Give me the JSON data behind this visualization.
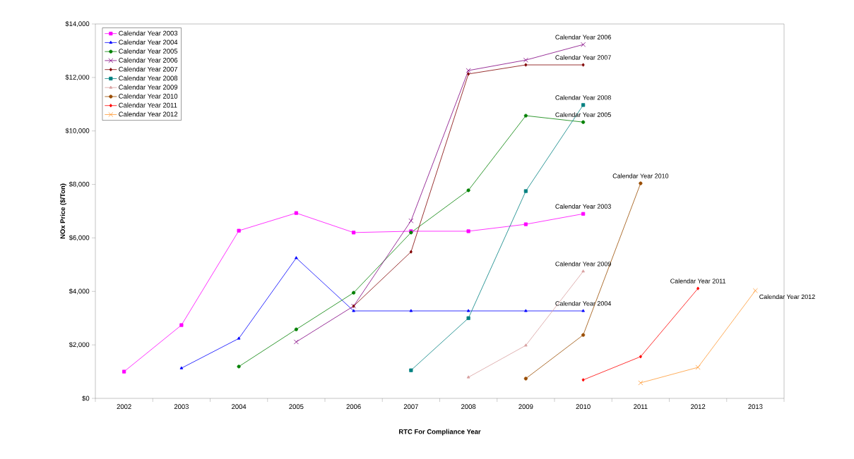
{
  "chart_data": {
    "type": "line",
    "xlabel": "RTC For Compliance Year",
    "ylabel": "NOx Price ($/Ton)",
    "categories": [
      "2002",
      "2003",
      "2004",
      "2005",
      "2006",
      "2007",
      "2008",
      "2009",
      "2010",
      "2011",
      "2012",
      "2013"
    ],
    "ylim": [
      0,
      14000
    ],
    "yticks": [
      {
        "value": 0,
        "label": "$0"
      },
      {
        "value": 2000,
        "label": "$2,000"
      },
      {
        "value": 4000,
        "label": "$4,000"
      },
      {
        "value": 6000,
        "label": "$6,000"
      },
      {
        "value": 8000,
        "label": "$8,000"
      },
      {
        "value": 10000,
        "label": "$10,000"
      },
      {
        "value": 12000,
        "label": "$12,000"
      },
      {
        "value": 14000,
        "label": "$14,000"
      }
    ],
    "legend": "top left",
    "grid": false,
    "line_style": "solid",
    "series": [
      {
        "name": "Calendar Year 2003",
        "color": "#ff00ff",
        "marker": "square",
        "values": [
          1000,
          2740,
          6270,
          6930,
          6200,
          6250,
          6250,
          6510,
          6900,
          null,
          null,
          null
        ]
      },
      {
        "name": "Calendar Year 2004",
        "color": "#0000ff",
        "marker": "triangle",
        "values": [
          null,
          1130,
          2240,
          5250,
          3270,
          3270,
          3270,
          3270,
          3270,
          null,
          null,
          null
        ]
      },
      {
        "name": "Calendar Year 2005",
        "color": "#008000",
        "marker": "circle",
        "values": [
          null,
          null,
          1190,
          2580,
          3950,
          6200,
          7780,
          10570,
          10330,
          null,
          null,
          null
        ]
      },
      {
        "name": "Calendar Year 2006",
        "color": "#800080",
        "marker": "cross",
        "values": [
          null,
          null,
          null,
          2110,
          3450,
          6640,
          12260,
          12650,
          13230,
          null,
          null,
          null
        ]
      },
      {
        "name": "Calendar Year 2007",
        "color": "#800000",
        "marker": "diamond",
        "values": [
          null,
          null,
          null,
          null,
          3450,
          5480,
          12130,
          12470,
          12470,
          null,
          null,
          null
        ]
      },
      {
        "name": "Calendar Year 2008",
        "color": "#008080",
        "marker": "square",
        "values": [
          null,
          null,
          null,
          null,
          null,
          1050,
          3000,
          7750,
          10970,
          null,
          null,
          null
        ]
      },
      {
        "name": "Calendar Year 2009",
        "color": "#d8a0a0",
        "marker": "triangle",
        "values": [
          null,
          null,
          null,
          null,
          null,
          null,
          790,
          1980,
          4750,
          null,
          null,
          null
        ]
      },
      {
        "name": "Calendar Year 2010",
        "color": "#994c00",
        "marker": "circle",
        "values": [
          null,
          null,
          null,
          null,
          null,
          null,
          null,
          740,
          2370,
          8040,
          null,
          null
        ]
      },
      {
        "name": "Calendar Year 2011",
        "color": "#ff0000",
        "marker": "diamond",
        "values": [
          null,
          null,
          null,
          null,
          null,
          null,
          null,
          null,
          690,
          1560,
          4110,
          null
        ]
      },
      {
        "name": "Calendar Year 2012",
        "color": "#ff9933",
        "marker": "cross",
        "values": [
          null,
          null,
          null,
          null,
          null,
          null,
          null,
          null,
          null,
          580,
          1160,
          4030
        ]
      }
    ],
    "annotations": [
      "Calendar Year 2003",
      "Calendar Year 2004",
      "Calendar Year 2005",
      "Calendar Year 2006",
      "Calendar Year 2007",
      "Calendar Year 2008",
      "Calendar Year 2009",
      "Calendar Year 2010",
      "Calendar Year 2011",
      "Calendar Year 2012"
    ]
  }
}
